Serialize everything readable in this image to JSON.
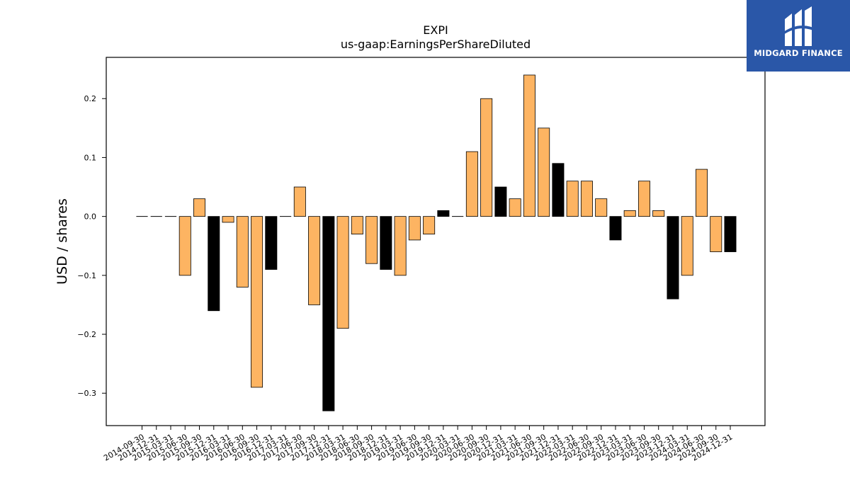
{
  "chart_data": {
    "type": "bar",
    "title": "EXPI",
    "subtitle": "us-gaap:EarningsPerShareDiluted",
    "ylabel": "USD / shares",
    "xlabel": "",
    "ylim": [
      -0.355,
      0.27
    ],
    "yticks": [
      -0.3,
      -0.2,
      -0.1,
      0.0,
      0.1,
      0.2
    ],
    "ytick_labels": [
      "−0.3",
      "−0.2",
      "−0.1",
      "0.0",
      "0.1",
      "0.2"
    ],
    "grid": false,
    "legend": "none",
    "colors": {
      "quarter": "#fdb462",
      "fiscal_q4": "#000000",
      "edge": "#000000"
    },
    "categories": [
      "2014-09-30",
      "2014-12-31",
      "2015-03-31",
      "2015-06-30",
      "2015-09-30",
      "2015-12-31",
      "2016-03-31",
      "2016-06-30",
      "2016-09-30",
      "2016-12-31",
      "2017-03-31",
      "2017-06-30",
      "2017-09-30",
      "2017-12-31",
      "2018-03-31",
      "2018-06-30",
      "2018-09-30",
      "2018-12-31",
      "2019-03-31",
      "2019-06-30",
      "2019-09-30",
      "2019-12-31",
      "2020-03-31",
      "2020-06-30",
      "2020-09-30",
      "2020-12-31",
      "2021-03-31",
      "2021-06-30",
      "2021-09-30",
      "2021-12-31",
      "2022-03-31",
      "2022-06-30",
      "2022-09-30",
      "2022-12-31",
      "2023-03-31",
      "2023-06-30",
      "2023-09-30",
      "2023-12-31",
      "2024-03-31",
      "2024-06-30",
      "2024-09-30",
      "2024-12-31"
    ],
    "values": [
      0,
      0,
      0,
      -0.1,
      0.03,
      -0.16,
      -0.01,
      -0.12,
      -0.29,
      -0.09,
      0,
      0.05,
      -0.15,
      -0.33,
      -0.19,
      -0.03,
      -0.08,
      -0.09,
      -0.1,
      -0.04,
      -0.03,
      0.01,
      0,
      0.11,
      0.2,
      0.05,
      0.03,
      0.24,
      0.15,
      0.09,
      0.06,
      0.06,
      0.03,
      -0.04,
      0.01,
      0.06,
      0.01,
      -0.14,
      -0.1,
      0.08,
      -0.06,
      -0.06
    ],
    "highlight": [
      false,
      false,
      false,
      false,
      false,
      true,
      false,
      false,
      false,
      true,
      false,
      false,
      false,
      true,
      false,
      false,
      false,
      true,
      false,
      false,
      false,
      true,
      false,
      false,
      false,
      true,
      false,
      false,
      false,
      true,
      false,
      false,
      false,
      true,
      false,
      false,
      false,
      true,
      false,
      false,
      false,
      true
    ]
  },
  "logo": {
    "text": "MIDGARD FINANCE"
  }
}
